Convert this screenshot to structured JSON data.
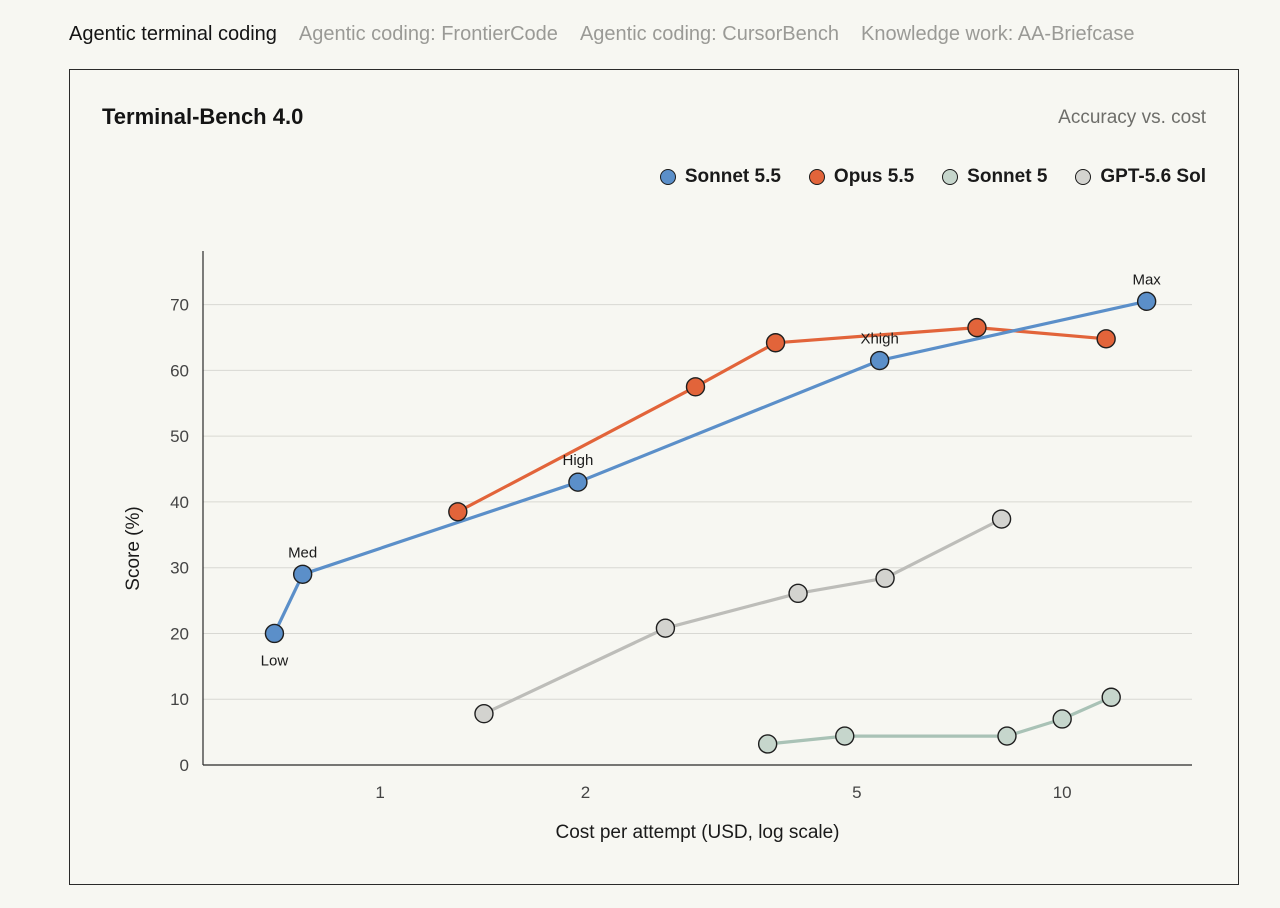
{
  "tabs": [
    {
      "label": "Agentic terminal coding",
      "active": true
    },
    {
      "label": "Agentic coding: FrontierCode",
      "active": false
    },
    {
      "label": "Agentic coding: CursorBench",
      "active": false
    },
    {
      "label": "Knowledge work: AA-Briefcase",
      "active": false
    }
  ],
  "chart_data": {
    "type": "line",
    "title": "Terminal-Bench 4.0",
    "subtitle": "Accuracy vs. cost",
    "xlabel": "Cost per attempt (USD, log scale)",
    "ylabel": "Score (%)",
    "xscale": "log",
    "xlim": [
      0.55,
      15.5
    ],
    "ylim": [
      0,
      78
    ],
    "xticks": [
      1,
      2,
      5,
      10
    ],
    "yticks": [
      0,
      10,
      20,
      30,
      40,
      50,
      60,
      70
    ],
    "grid": "horizontal",
    "legend_position": "top-right",
    "series": [
      {
        "name": "Sonnet 5.5",
        "color": "#5b8fc9",
        "points": [
          {
            "x": 0.7,
            "y": 20,
            "label": "Low",
            "label_pos": "below"
          },
          {
            "x": 0.77,
            "y": 29,
            "label": "Med",
            "label_pos": "above"
          },
          {
            "x": 1.95,
            "y": 43,
            "label": "High",
            "label_pos": "above"
          },
          {
            "x": 5.4,
            "y": 61.5,
            "label": "Xhigh",
            "label_pos": "above"
          },
          {
            "x": 13.3,
            "y": 70.5,
            "label": "Max",
            "label_pos": "above"
          }
        ]
      },
      {
        "name": "Opus 5.5",
        "color": "#e2643a",
        "points": [
          {
            "x": 1.3,
            "y": 38.5
          },
          {
            "x": 2.9,
            "y": 57.5
          },
          {
            "x": 3.8,
            "y": 64.2
          },
          {
            "x": 7.5,
            "y": 66.5
          },
          {
            "x": 11.6,
            "y": 64.8
          }
        ]
      },
      {
        "name": "Sonnet 5",
        "color": "#c6d6cc",
        "points": [
          {
            "x": 3.7,
            "y": 3.2
          },
          {
            "x": 4.8,
            "y": 4.4
          },
          {
            "x": 8.3,
            "y": 4.4
          },
          {
            "x": 10.0,
            "y": 7.0
          },
          {
            "x": 11.8,
            "y": 10.3
          }
        ]
      },
      {
        "name": "GPT-5.6 Sol",
        "color": "#d3d3cf",
        "points": [
          {
            "x": 1.42,
            "y": 7.8
          },
          {
            "x": 2.62,
            "y": 20.8
          },
          {
            "x": 4.1,
            "y": 26.1
          },
          {
            "x": 5.5,
            "y": 28.4
          },
          {
            "x": 8.15,
            "y": 37.4
          }
        ]
      }
    ]
  }
}
